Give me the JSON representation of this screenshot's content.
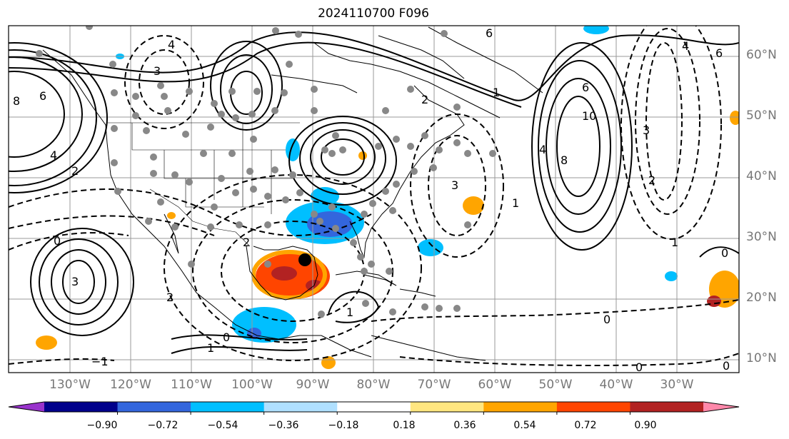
{
  "title": "2024110700 F096",
  "lat_labels": [
    "60°N",
    "50°N",
    "40°N",
    "30°N",
    "20°N",
    "10°N"
  ],
  "lon_labels": [
    "130°W",
    "120°W",
    "110°W",
    "100°W",
    "90°W",
    "80°W",
    "70°W",
    "60°W",
    "50°W",
    "40°W",
    "30°W"
  ],
  "colorbar": {
    "colors": [
      "#9933cc",
      "#00008b",
      "#3366dd",
      "#00bfff",
      "#b0e0ff",
      "#ffffff",
      "#ffe680",
      "#ffa500",
      "#ff4500",
      "#b22222",
      "#ff88aa"
    ],
    "ticks": [
      "−0.90",
      "−0.72",
      "−0.54",
      "−0.36",
      "−0.18",
      "0.18",
      "0.36",
      "0.54",
      "0.72",
      "0.90"
    ]
  },
  "contour_labels": [
    "8",
    "6",
    "4",
    "2",
    "0",
    "−1",
    "3",
    "2",
    "1",
    "2",
    "0",
    "3",
    "4",
    "6",
    "1",
    "10",
    "8",
    "6",
    "4",
    "3",
    "2",
    "0",
    "0",
    "1",
    "0",
    "6",
    "4",
    "1",
    "1",
    "0",
    "2",
    "3"
  ],
  "marker": {
    "name": "storm-center",
    "color": "#000000"
  }
}
